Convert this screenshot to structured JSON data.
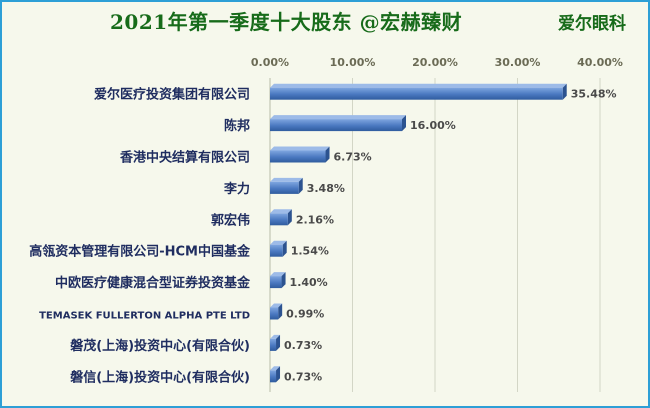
{
  "header": {
    "title": "2021年第一季度十大股东 @宏赫臻财",
    "brand": "爱尔眼科"
  },
  "chart_data": {
    "type": "bar",
    "orientation": "horizontal",
    "categories": [
      "爱尔医疗投资集团有限公司",
      "陈邦",
      "香港中央结算有限公司",
      "李力",
      "郭宏伟",
      "高瓴资本管理有限公司-HCM中国基金",
      "中欧医疗健康混合型证券投资基金",
      "TEMASEK FULLERTON ALPHA PTE LTD",
      "磐茂(上海)投资中心(有限合伙)",
      "磐信(上海)投资中心(有限合伙)"
    ],
    "values": [
      35.48,
      16.0,
      6.73,
      3.48,
      2.16,
      1.54,
      1.4,
      0.99,
      0.73,
      0.73
    ],
    "value_labels": [
      "35.48%",
      "16.00%",
      "6.73%",
      "3.48%",
      "2.16%",
      "1.54%",
      "1.40%",
      "0.99%",
      "0.73%",
      "0.73%"
    ],
    "xlim": [
      0,
      40
    ],
    "x_ticks": [
      "0.00%",
      "10.00%",
      "20.00%",
      "30.00%",
      "40.00%"
    ],
    "x_axis_position": "top",
    "grid": true,
    "bar_color": "#4a78c0",
    "title": "2021年第一季度十大股东 @宏赫臻财"
  }
}
